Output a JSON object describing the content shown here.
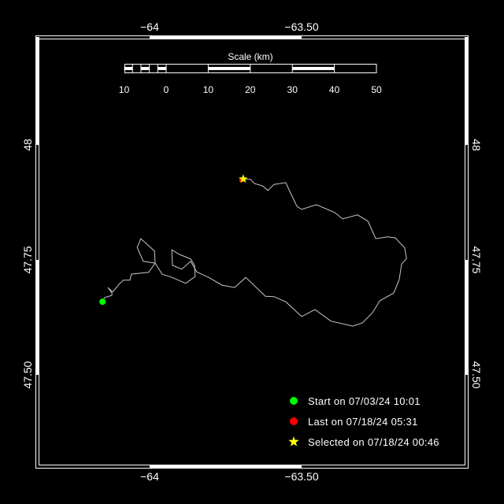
{
  "map": {
    "lon_range": [
      -64.3705,
      -62.956
    ],
    "lat_range": [
      47.2998,
      48.2345
    ],
    "lon_ticks": [
      {
        "value": -64,
        "label": "−64"
      },
      {
        "value": -63.5,
        "label": "−63.50"
      }
    ],
    "lat_ticks": [
      {
        "value": 48,
        "label": "48"
      },
      {
        "value": 47.75,
        "label": "47.75"
      },
      {
        "value": 47.5,
        "label": "47.50"
      }
    ],
    "colors": {
      "background": "#000000",
      "frame": "#ffffff",
      "track": "#c8c8c8",
      "start": "#00ff00",
      "last": "#ff0000",
      "selected": "#ffff00"
    }
  },
  "scale_bar": {
    "title": "Scale (km)",
    "labels": [
      "10",
      "0",
      "10",
      "20",
      "30",
      "40",
      "50"
    ]
  },
  "track": [
    [
      -64.155,
      47.659
    ],
    [
      -64.148,
      47.668
    ],
    [
      -64.124,
      47.673
    ],
    [
      -64.124,
      47.678
    ],
    [
      -64.137,
      47.69
    ],
    [
      -64.122,
      47.68
    ],
    [
      -64.098,
      47.699
    ],
    [
      -64.086,
      47.706
    ],
    [
      -64.065,
      47.706
    ],
    [
      -64.06,
      47.719
    ],
    [
      -64.003,
      47.723
    ],
    [
      -63.982,
      47.743
    ],
    [
      -63.984,
      47.769
    ],
    [
      -64.0,
      47.779
    ],
    [
      -64.029,
      47.796
    ],
    [
      -64.041,
      47.777
    ],
    [
      -64.021,
      47.747
    ],
    [
      -63.982,
      47.743
    ],
    [
      -63.959,
      47.719
    ],
    [
      -63.927,
      47.712
    ],
    [
      -63.881,
      47.699
    ],
    [
      -63.85,
      47.714
    ],
    [
      -63.852,
      47.738
    ],
    [
      -63.865,
      47.752
    ],
    [
      -63.876,
      47.755
    ],
    [
      -63.902,
      47.762
    ],
    [
      -63.927,
      47.772
    ],
    [
      -63.925,
      47.738
    ],
    [
      -63.894,
      47.73
    ],
    [
      -63.865,
      47.747
    ],
    [
      -63.845,
      47.724
    ],
    [
      -63.826,
      47.718
    ],
    [
      -63.806,
      47.712
    ],
    [
      -63.762,
      47.695
    ],
    [
      -63.72,
      47.69
    ],
    [
      -63.684,
      47.712
    ],
    [
      -63.619,
      47.671
    ],
    [
      -63.591,
      47.67
    ],
    [
      -63.552,
      47.659
    ],
    [
      -63.5,
      47.627
    ],
    [
      -63.456,
      47.642
    ],
    [
      -63.404,
      47.617
    ],
    [
      -63.332,
      47.606
    ],
    [
      -63.3,
      47.613
    ],
    [
      -63.267,
      47.635
    ],
    [
      -63.243,
      47.661
    ],
    [
      -63.197,
      47.678
    ],
    [
      -63.179,
      47.707
    ],
    [
      -63.171,
      47.741
    ],
    [
      -63.155,
      47.753
    ],
    [
      -63.161,
      47.776
    ],
    [
      -63.192,
      47.798
    ],
    [
      -63.218,
      47.8
    ],
    [
      -63.256,
      47.796
    ],
    [
      -63.282,
      47.834
    ],
    [
      -63.316,
      47.848
    ],
    [
      -63.365,
      47.839
    ],
    [
      -63.391,
      47.853
    ],
    [
      -63.451,
      47.87
    ],
    [
      -63.5,
      47.86
    ],
    [
      -63.515,
      47.866
    ],
    [
      -63.534,
      47.892
    ],
    [
      -63.552,
      47.918
    ],
    [
      -63.591,
      47.914
    ],
    [
      -63.611,
      47.901
    ],
    [
      -63.629,
      47.911
    ],
    [
      -63.655,
      47.916
    ],
    [
      -63.668,
      47.925
    ],
    [
      -63.694,
      47.926
    ]
  ],
  "markers": {
    "start": {
      "lon": -64.155,
      "lat": 47.659
    },
    "last": {
      "lon": -63.697,
      "lat": 47.923
    },
    "selected": {
      "lon": -63.692,
      "lat": 47.926
    }
  },
  "legend": {
    "start_label": "Start on 07/03/24 10:01",
    "last_label": "Last on 07/18/24 05:31",
    "selected_label": "Selected on 07/18/24 00:46",
    "start_icon": "green-circle",
    "last_icon": "red-circle",
    "selected_icon": "yellow-star"
  }
}
